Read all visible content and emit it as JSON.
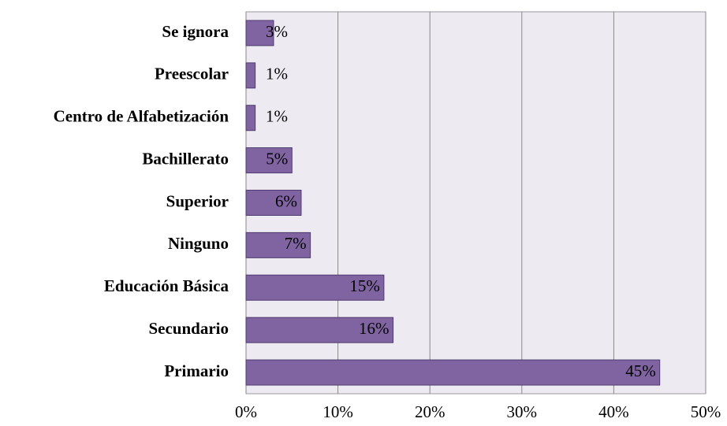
{
  "chart_data": {
    "type": "bar",
    "orientation": "horizontal",
    "categories": [
      "Se ignora",
      "Preescolar",
      "Centro de Alfabetización",
      "Bachillerato",
      "Superior",
      "Ninguno",
      "Educación Básica",
      "Secundario",
      "Primario"
    ],
    "values": [
      3,
      1,
      1,
      5,
      6,
      7,
      15,
      16,
      45
    ],
    "value_labels": [
      "3%",
      "1%",
      "1%",
      "5%",
      "6%",
      "7%",
      "15%",
      "16%",
      "45%"
    ],
    "color": "#8064a2",
    "xlim": [
      0,
      50
    ],
    "xticks": [
      {
        "value": 0,
        "label": "0%"
      },
      {
        "value": 10,
        "label": "10%"
      },
      {
        "value": 20,
        "label": "20%"
      },
      {
        "value": 30,
        "label": "30%"
      },
      {
        "value": 40,
        "label": "40%"
      },
      {
        "value": 50,
        "label": "50%"
      }
    ],
    "grid": true
  }
}
